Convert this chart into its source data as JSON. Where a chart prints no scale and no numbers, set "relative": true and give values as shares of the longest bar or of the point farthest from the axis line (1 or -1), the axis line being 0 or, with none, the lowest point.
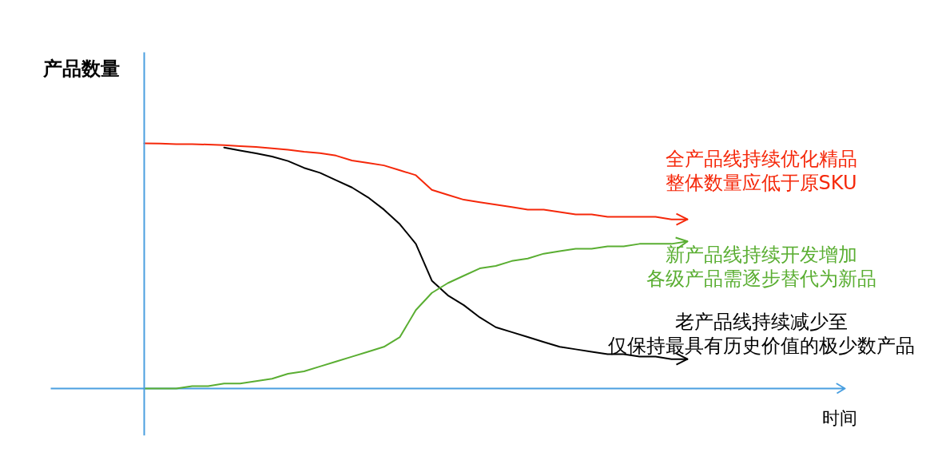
{
  "chart_data": {
    "type": "line",
    "relative": true,
    "ylabel": "产品数量",
    "annotations": [
      "时间"
    ],
    "categories": [
      null,
      null,
      null,
      null,
      null,
      null,
      null,
      null,
      null,
      null,
      null,
      null,
      null,
      null,
      null,
      null,
      null,
      null,
      null,
      null,
      null,
      null,
      null,
      null,
      null,
      null,
      null,
      null,
      null,
      null,
      null,
      null,
      null,
      null,
      null
    ],
    "series": [
      {
        "name": "全产品线持续优化精品整体数量应低于原SKU",
        "color": "#f5280a",
        "values": [
          1.0,
          0.999,
          0.997,
          0.997,
          0.995,
          0.993,
          0.989,
          0.985,
          0.98,
          0.974,
          0.966,
          0.96,
          0.95,
          0.93,
          0.92,
          0.91,
          0.89,
          0.87,
          0.81,
          0.79,
          0.77,
          0.76,
          0.75,
          0.74,
          0.73,
          0.73,
          0.72,
          0.71,
          0.71,
          0.7,
          0.7,
          0.7,
          0.7,
          0.69,
          0.69
        ]
      },
      {
        "name": "新产品线持续开发增加各级产品需逐步替代为新品",
        "color": "#5aae32",
        "values": [
          0.0,
          0.0,
          0.0,
          0.01,
          0.01,
          0.02,
          0.02,
          0.03,
          0.04,
          0.06,
          0.07,
          0.09,
          0.11,
          0.13,
          0.15,
          0.17,
          0.21,
          0.32,
          0.39,
          0.43,
          0.46,
          0.49,
          0.5,
          0.52,
          0.53,
          0.55,
          0.56,
          0.57,
          0.57,
          0.58,
          0.58,
          0.59,
          0.59,
          0.59,
          0.6
        ]
      },
      {
        "name": "老产品线持续减少至仅保持最具有历史价值的极少数产品",
        "color": "#000000",
        "values": [
          null,
          null,
          null,
          null,
          null,
          0.983,
          0.971,
          0.959,
          0.946,
          0.928,
          0.9,
          0.88,
          0.85,
          0.82,
          0.78,
          0.73,
          0.67,
          0.59,
          0.44,
          0.38,
          0.34,
          0.29,
          0.25,
          0.23,
          0.21,
          0.19,
          0.17,
          0.16,
          0.15,
          0.14,
          0.14,
          0.13,
          0.13,
          0.12,
          0.12
        ]
      }
    ]
  }
}
